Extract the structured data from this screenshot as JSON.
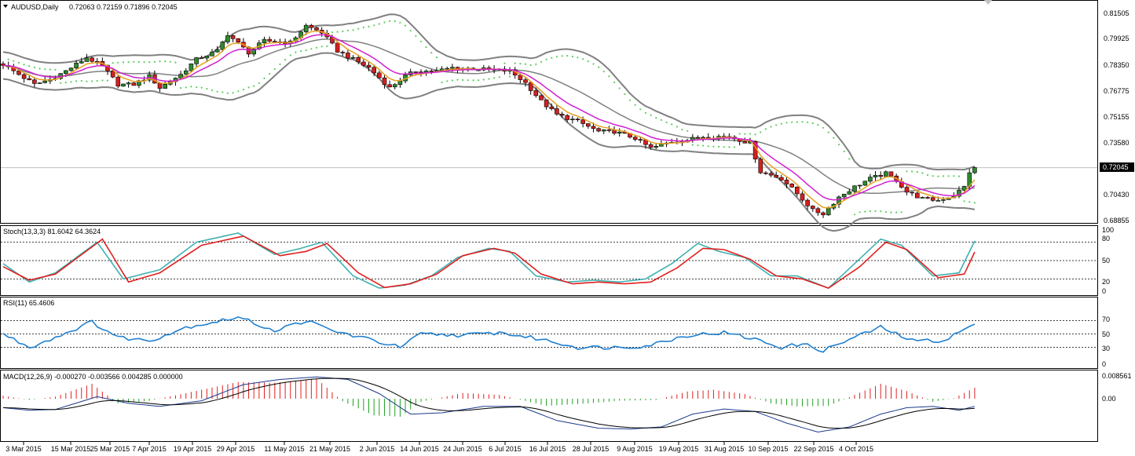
{
  "header": {
    "symbol": "AUDUSD,Daily",
    "ohlc": "0.72063 0.72159 0.71896 0.72045"
  },
  "panels": {
    "stoch": {
      "label": "Stoch(13,3,3) 81.6042 64.3624",
      "levels": [
        "100",
        "80",
        "50",
        "20",
        "0"
      ]
    },
    "rsi": {
      "label": "RSI(11) 65.4606",
      "levels": [
        "70",
        "50",
        "30",
        "0"
      ]
    },
    "macd": {
      "label": "MACD(12,26,9) -0.000270 -0.003566 0.004285 0.000000",
      "levels": [
        "0.008561",
        "0.00"
      ]
    }
  },
  "price_axis": {
    "labels": [
      "0.81505",
      "0.79925",
      "0.78350",
      "0.76775",
      "0.75155",
      "0.73580",
      "0.70430",
      "0.68855"
    ],
    "current": "0.72045"
  },
  "time_axis": [
    "3 Mar 2015",
    "15 Mar 2015",
    "25 Mar 2015",
    "7 Apr 2015",
    "19 Apr 2015",
    "29 Apr 2015",
    "11 May 2015",
    "21 May 2015",
    "2 Jun 2015",
    "14 Jun 2015",
    "24 Jun 2015",
    "6 Jul 2015",
    "16 Jul 2015",
    "28 Jul 2015",
    "9 Aug 2015",
    "19 Aug 2015",
    "31 Aug 2015",
    "10 Sep 2015",
    "22 Sep 2015",
    "4 Oct 2015"
  ],
  "colors": {
    "bull": "#2e8b2e",
    "bear": "#d42020",
    "bands": "#808080",
    "ema_fast": "#e8a020",
    "ema_slow": "#d020d0",
    "sar": "#5ccc5c",
    "stoch_main": "#40b0b0",
    "stoch_signal": "#e02020",
    "rsi": "#2080d0",
    "macd_hist_pos": "#e02020",
    "macd_hist_neg": "#20a020",
    "macd_line": "#1a3a8a"
  },
  "chart_data": {
    "type": "candlestick",
    "symbol": "AUDUSD",
    "timeframe": "Daily",
    "ylim": [
      0.6885,
      0.8175
    ],
    "anchors": [
      {
        "i": 0,
        "p": 0.782
      },
      {
        "i": 6,
        "p": 0.77
      },
      {
        "i": 9,
        "p": 0.773
      },
      {
        "i": 12,
        "p": 0.778
      },
      {
        "i": 16,
        "p": 0.786
      },
      {
        "i": 19,
        "p": 0.781
      },
      {
        "i": 22,
        "p": 0.77
      },
      {
        "i": 25,
        "p": 0.77
      },
      {
        "i": 28,
        "p": 0.775
      },
      {
        "i": 30,
        "p": 0.768
      },
      {
        "i": 34,
        "p": 0.776
      },
      {
        "i": 37,
        "p": 0.785
      },
      {
        "i": 41,
        "p": 0.79
      },
      {
        "i": 43,
        "p": 0.8
      },
      {
        "i": 47,
        "p": 0.789
      },
      {
        "i": 50,
        "p": 0.796
      },
      {
        "i": 55,
        "p": 0.795
      },
      {
        "i": 58,
        "p": 0.805
      },
      {
        "i": 61,
        "p": 0.801
      },
      {
        "i": 64,
        "p": 0.79
      },
      {
        "i": 67,
        "p": 0.785
      },
      {
        "i": 70,
        "p": 0.78
      },
      {
        "i": 74,
        "p": 0.768
      },
      {
        "i": 77,
        "p": 0.775
      },
      {
        "i": 79,
        "p": 0.778
      },
      {
        "i": 83,
        "p": 0.778
      },
      {
        "i": 86,
        "p": 0.78
      },
      {
        "i": 92,
        "p": 0.779
      },
      {
        "i": 97,
        "p": 0.778
      },
      {
        "i": 100,
        "p": 0.771
      },
      {
        "i": 103,
        "p": 0.76
      },
      {
        "i": 106,
        "p": 0.752
      },
      {
        "i": 110,
        "p": 0.748
      },
      {
        "i": 114,
        "p": 0.742
      },
      {
        "i": 117,
        "p": 0.742
      },
      {
        "i": 121,
        "p": 0.738
      },
      {
        "i": 124,
        "p": 0.732
      },
      {
        "i": 128,
        "p": 0.736
      },
      {
        "i": 131,
        "p": 0.737
      },
      {
        "i": 134,
        "p": 0.739
      },
      {
        "i": 139,
        "p": 0.739
      },
      {
        "i": 143,
        "p": 0.735
      },
      {
        "i": 145,
        "p": 0.718
      },
      {
        "i": 149,
        "p": 0.714
      },
      {
        "i": 152,
        "p": 0.705
      },
      {
        "i": 155,
        "p": 0.695
      },
      {
        "i": 157,
        "p": 0.693
      },
      {
        "i": 160,
        "p": 0.703
      },
      {
        "i": 163,
        "p": 0.709
      },
      {
        "i": 166,
        "p": 0.714
      },
      {
        "i": 169,
        "p": 0.717
      },
      {
        "i": 171,
        "p": 0.713
      },
      {
        "i": 173,
        "p": 0.706
      },
      {
        "i": 176,
        "p": 0.702
      },
      {
        "i": 179,
        "p": 0.701
      },
      {
        "i": 182,
        "p": 0.704
      },
      {
        "i": 184,
        "p": 0.709
      },
      {
        "i": 185,
        "p": 0.718
      },
      {
        "i": 186,
        "p": 0.7204
      }
    ],
    "stoch_main": [
      [
        0,
        45
      ],
      [
        5,
        15
      ],
      [
        10,
        30
      ],
      [
        18,
        80
      ],
      [
        23,
        20
      ],
      [
        30,
        35
      ],
      [
        37,
        80
      ],
      [
        45,
        95
      ],
      [
        52,
        60
      ],
      [
        57,
        70
      ],
      [
        61,
        80
      ],
      [
        67,
        25
      ],
      [
        72,
        5
      ],
      [
        77,
        10
      ],
      [
        82,
        25
      ],
      [
        87,
        55
      ],
      [
        93,
        70
      ],
      [
        97,
        65
      ],
      [
        102,
        25
      ],
      [
        108,
        15
      ],
      [
        113,
        18
      ],
      [
        118,
        15
      ],
      [
        123,
        20
      ],
      [
        128,
        45
      ],
      [
        133,
        78
      ],
      [
        137,
        65
      ],
      [
        142,
        55
      ],
      [
        147,
        25
      ],
      [
        152,
        25
      ],
      [
        158,
        5
      ],
      [
        163,
        45
      ],
      [
        168,
        85
      ],
      [
        172,
        75
      ],
      [
        178,
        25
      ],
      [
        183,
        30
      ],
      [
        186,
        82
      ]
    ],
    "stoch_signal": [
      [
        0,
        40
      ],
      [
        5,
        18
      ],
      [
        10,
        28
      ],
      [
        19,
        85
      ],
      [
        24,
        15
      ],
      [
        30,
        30
      ],
      [
        38,
        75
      ],
      [
        46,
        90
      ],
      [
        53,
        58
      ],
      [
        58,
        65
      ],
      [
        62,
        78
      ],
      [
        68,
        30
      ],
      [
        73,
        6
      ],
      [
        78,
        12
      ],
      [
        83,
        28
      ],
      [
        88,
        58
      ],
      [
        94,
        70
      ],
      [
        98,
        62
      ],
      [
        103,
        28
      ],
      [
        109,
        12
      ],
      [
        114,
        15
      ],
      [
        119,
        12
      ],
      [
        124,
        15
      ],
      [
        129,
        38
      ],
      [
        134,
        70
      ],
      [
        138,
        68
      ],
      [
        143,
        52
      ],
      [
        148,
        25
      ],
      [
        153,
        20
      ],
      [
        158,
        5
      ],
      [
        164,
        40
      ],
      [
        169,
        80
      ],
      [
        173,
        68
      ],
      [
        179,
        22
      ],
      [
        184,
        28
      ],
      [
        186,
        64
      ]
    ],
    "rsi": [
      [
        0,
        50
      ],
      [
        5,
        30
      ],
      [
        10,
        45
      ],
      [
        17,
        68
      ],
      [
        22,
        45
      ],
      [
        28,
        40
      ],
      [
        35,
        60
      ],
      [
        45,
        75
      ],
      [
        52,
        55
      ],
      [
        58,
        70
      ],
      [
        63,
        55
      ],
      [
        70,
        42
      ],
      [
        76,
        30
      ],
      [
        80,
        50
      ],
      [
        88,
        48
      ],
      [
        95,
        52
      ],
      [
        103,
        42
      ],
      [
        110,
        30
      ],
      [
        117,
        30
      ],
      [
        123,
        32
      ],
      [
        131,
        48
      ],
      [
        138,
        52
      ],
      [
        144,
        42
      ],
      [
        149,
        30
      ],
      [
        153,
        35
      ],
      [
        157,
        25
      ],
      [
        163,
        45
      ],
      [
        168,
        60
      ],
      [
        174,
        40
      ],
      [
        180,
        40
      ],
      [
        186,
        65
      ]
    ],
    "macd_hist": [
      [
        0,
        0.0012
      ],
      [
        5,
        -0.0005
      ],
      [
        10,
        0.0008
      ],
      [
        17,
        0.0058
      ],
      [
        22,
        -0.0018
      ],
      [
        28,
        -0.0008
      ],
      [
        35,
        0.0022
      ],
      [
        45,
        0.0065
      ],
      [
        52,
        0.0062
      ],
      [
        60,
        0.0078
      ],
      [
        65,
        -0.001
      ],
      [
        71,
        -0.0065
      ],
      [
        76,
        -0.007
      ],
      [
        80,
        -0.0012
      ],
      [
        88,
        0.0022
      ],
      [
        95,
        0.0015
      ],
      [
        104,
        -0.0028
      ],
      [
        112,
        -0.0018
      ],
      [
        118,
        -0.0008
      ],
      [
        125,
        -0.0005
      ],
      [
        131,
        0.0028
      ],
      [
        136,
        0.0035
      ],
      [
        142,
        0.0018
      ],
      [
        147,
        -0.0018
      ],
      [
        152,
        -0.003
      ],
      [
        158,
        -0.0028
      ],
      [
        163,
        0.0015
      ],
      [
        168,
        0.0058
      ],
      [
        173,
        0.003
      ],
      [
        178,
        -0.0012
      ],
      [
        182,
        0.0002
      ],
      [
        186,
        0.0043
      ]
    ],
    "macd_line": [
      [
        0,
        -0.0035
      ],
      [
        5,
        -0.0045
      ],
      [
        10,
        -0.0042
      ],
      [
        18,
        0.0008
      ],
      [
        24,
        -0.0018
      ],
      [
        30,
        -0.003
      ],
      [
        38,
        -0.0008
      ],
      [
        46,
        0.0055
      ],
      [
        53,
        0.0075
      ],
      [
        60,
        0.0085
      ],
      [
        66,
        0.0075
      ],
      [
        72,
        0.002
      ],
      [
        78,
        -0.006
      ],
      [
        84,
        -0.0055
      ],
      [
        92,
        -0.003
      ],
      [
        99,
        -0.003
      ],
      [
        106,
        -0.0085
      ],
      [
        114,
        -0.0115
      ],
      [
        120,
        -0.0118
      ],
      [
        126,
        -0.011
      ],
      [
        132,
        -0.006
      ],
      [
        138,
        -0.004
      ],
      [
        144,
        -0.005
      ],
      [
        150,
        -0.0095
      ],
      [
        156,
        -0.013
      ],
      [
        162,
        -0.011
      ],
      [
        168,
        -0.006
      ],
      [
        173,
        -0.0035
      ],
      [
        178,
        -0.003
      ],
      [
        183,
        -0.0045
      ],
      [
        186,
        -0.003
      ]
    ]
  }
}
